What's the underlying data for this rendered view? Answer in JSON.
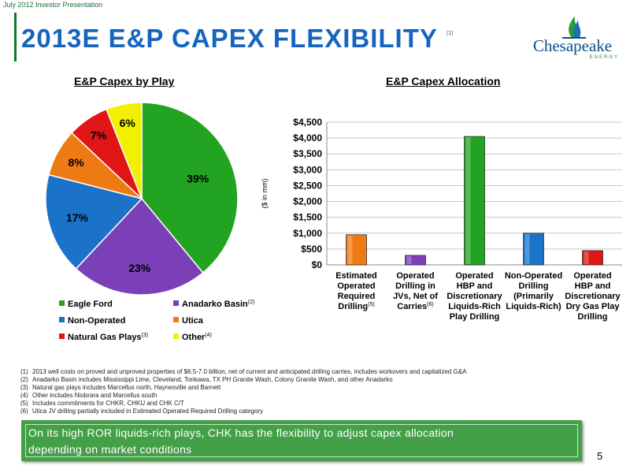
{
  "header": {
    "kicker": "July 2012 Investor Presentation",
    "title": "2013E E&P CAPEX FLEXIBILITY",
    "title_note": "(1)"
  },
  "logo": {
    "name": "Chesapeake",
    "sub": "ENERGY"
  },
  "colors": {
    "title_blue": "#1565c0",
    "green": "#22a322",
    "purple": "#7b3fb8",
    "blue": "#1a73c8",
    "orange": "#ee7a14",
    "red": "#e01616",
    "yellow": "#f0f000",
    "banner_green": "#43a047"
  },
  "chart_data": [
    {
      "type": "pie",
      "title": "E&P Capex by Play",
      "slices": [
        {
          "label": "Eagle Ford",
          "note": "",
          "value": 39,
          "display": "39%",
          "color": "#22a322"
        },
        {
          "label": "Anadarko Basin",
          "note": "(2)",
          "value": 23,
          "display": "23%",
          "color": "#7b3fb8"
        },
        {
          "label": "Non-Operated",
          "note": "",
          "value": 17,
          "display": "17%",
          "color": "#1a73c8"
        },
        {
          "label": "Utica",
          "note": "",
          "value": 8,
          "display": "8%",
          "color": "#ee7a14"
        },
        {
          "label": "Natural Gas Plays",
          "note": "(3)",
          "value": 7,
          "display": "7%",
          "color": "#e01616"
        },
        {
          "label": "Other",
          "note": "(4)",
          "value": 6,
          "display": "6%",
          "color": "#f0f000"
        }
      ]
    },
    {
      "type": "bar",
      "title": "E&P Capex Allocation",
      "ylabel": "($ in mm)",
      "ylim": [
        0,
        4500
      ],
      "yticks": [
        0,
        500,
        1000,
        1500,
        2000,
        2500,
        3000,
        3500,
        4000,
        4500
      ],
      "ytick_labels": [
        "$0",
        "$500",
        "$1,000",
        "$1,500",
        "$2,000",
        "$2,500",
        "$3,000",
        "$3,500",
        "$4,000",
        "$4,500"
      ],
      "grid": true,
      "categories": [
        {
          "lines": [
            "Estimated",
            "Operated",
            "Required",
            "Drilling"
          ],
          "note": "(5)"
        },
        {
          "lines": [
            "Operated",
            "Drilling in",
            "JVs, Net of",
            "Carries"
          ],
          "note": "(6)"
        },
        {
          "lines": [
            "Operated",
            "HBP and",
            "Discretionary",
            "Liquids-Rich",
            "Play Drilling"
          ],
          "note": ""
        },
        {
          "lines": [
            "Non-Operated",
            "Drilling",
            "(Primarily",
            "Liquids-Rich)"
          ],
          "note": ""
        },
        {
          "lines": [
            "Operated",
            "HBP and",
            "Discretionary",
            "Dry Gas Play",
            "Drilling"
          ],
          "note": ""
        }
      ],
      "values": [
        950,
        300,
        4050,
        1000,
        450
      ],
      "colors": [
        "#ee7a14",
        "#7b3fb8",
        "#22a322",
        "#1a73c8",
        "#e01616"
      ]
    }
  ],
  "footnotes": [
    {
      "num": "(1)",
      "text": "2013 well costs on proved and unproved properties of $6.5-7.0 billion, net of current and anticipated drilling carries, includes workovers and capitalized G&A"
    },
    {
      "num": "(2)",
      "text": "Anadarko Basin includes Mississippi Lime, Cleveland, Tonkawa, TX PH Granite Wash, Colony Granite Wash, and other Anadarko"
    },
    {
      "num": "(3)",
      "text": "Natural gas plays includes Marcellus north, Haynesville and Barnett"
    },
    {
      "num": "(4)",
      "text": "Other includes Niobrara and Marcellus south"
    },
    {
      "num": "(5)",
      "text": "Includes commitments for CHKR, CHKU and CHK C/T"
    },
    {
      "num": "(6)",
      "text": "Utica JV drilling partially included in Estimated Operated Required Drilling category"
    }
  ],
  "banner": {
    "line1": "On its high ROR liquids-rich plays, CHK has the flexibility to adjust capex allocation",
    "line2": "depending on market conditions"
  },
  "page_number": "5"
}
